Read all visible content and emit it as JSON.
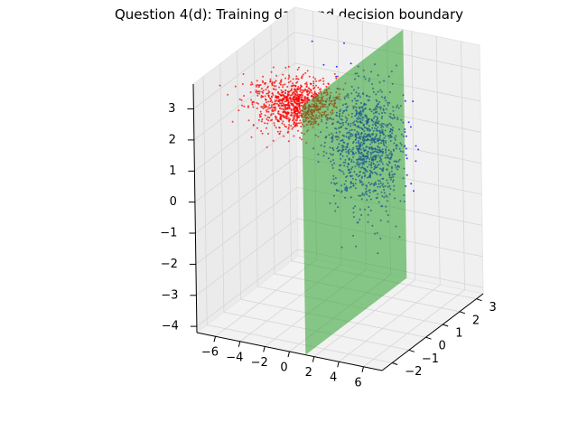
{
  "chart_data": {
    "type": "scatter",
    "projection": "3d",
    "title": "Question 4(d): Training data and decision boundary",
    "xlabel": "",
    "ylabel": "",
    "zlabel": "",
    "grid": true,
    "xlim": [
      -7.5,
      7.5
    ],
    "ylim": [
      -2.6,
      3.4
    ],
    "zlim": [
      -4.2,
      3.8
    ],
    "x_ticks": [
      -6,
      -4,
      -2,
      0,
      2,
      4,
      6
    ],
    "y_ticks": [
      -2,
      -1,
      0,
      1,
      2,
      3
    ],
    "z_ticks": [
      -4,
      -3,
      -2,
      -1,
      0,
      1,
      2,
      3
    ],
    "colors": {
      "class_red": "#ff0000",
      "class_blue": "#0000ff",
      "boundary_plane": "#2ca02c",
      "pane": "#f2f2f2",
      "grid": "#d6d6d6"
    },
    "series": [
      {
        "color": "#ff0000",
        "count": 1000,
        "distribution": {
          "x_mean": -3.2,
          "x_sd": 1.5,
          "y_mean": 0.3,
          "y_sd": 0.5,
          "z_mean": 2.3,
          "z_sd": 0.35
        }
      },
      {
        "color": "#0000ff",
        "count": 1000,
        "distribution": {
          "x_mean": 2.5,
          "x_sd": 1.4,
          "y_mean": 0.3,
          "y_sd": 0.5,
          "z_mean": 1.4,
          "z_sd": 1.0
        }
      }
    ],
    "decision_boundary": {
      "type": "plane",
      "color": "#2ca02c",
      "alpha": 0.55,
      "x": 1.3,
      "y_range": [
        -2.6,
        3.4
      ],
      "z_range": [
        -4.2,
        3.8
      ]
    }
  }
}
